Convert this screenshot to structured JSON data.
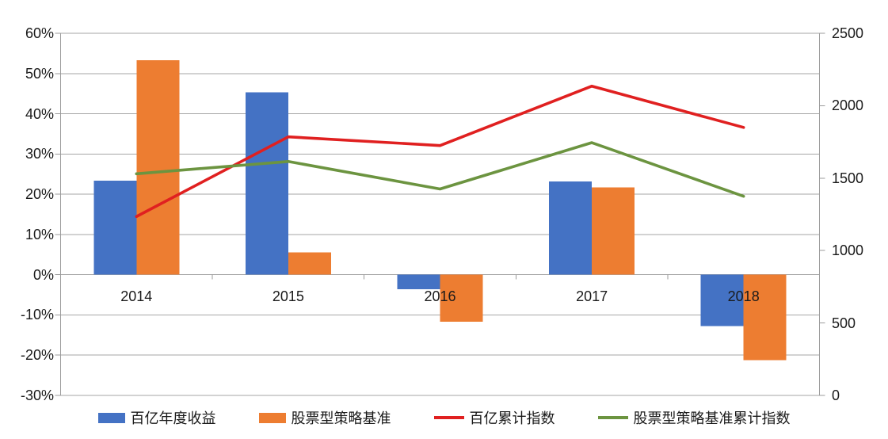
{
  "chart_data": {
    "type": "combo-bar-line",
    "title": "",
    "categories": [
      "2014",
      "2015",
      "2016",
      "2017",
      "2018"
    ],
    "bar_series": [
      {
        "key": "annual-return",
        "name": "百亿年度收益",
        "color": "#4472C4",
        "axis": "left",
        "values": [
          23.4,
          45.3,
          -3.6,
          23.2,
          -12.8
        ]
      },
      {
        "key": "benchmark-return",
        "name": "股票型策略基准",
        "color": "#ED7D31",
        "axis": "left",
        "values": [
          53.3,
          5.5,
          -11.7,
          21.7,
          -21.2
        ]
      }
    ],
    "line_series": [
      {
        "key": "cumulative-index",
        "name": "百亿累计指数",
        "color": "#E02020",
        "axis": "right",
        "values": [
          1235,
          1785,
          1725,
          2135,
          1850
        ]
      },
      {
        "key": "benchmark-cumulative-index",
        "name": "股票型策略基准累计指数",
        "color": "#6C9440",
        "axis": "right",
        "values": [
          1530,
          1615,
          1425,
          1745,
          1375
        ]
      }
    ],
    "left_axis": {
      "min": -30,
      "max": 60,
      "step": 10,
      "unit": "%",
      "tick_labels": [
        "60%",
        "50%",
        "40%",
        "30%",
        "20%",
        "10%",
        "0%",
        "-10%",
        "-20%",
        "-30%"
      ]
    },
    "right_axis": {
      "min": 0,
      "max": 2500,
      "step": 500,
      "tick_labels": [
        "2500",
        "2000",
        "1500",
        "1000",
        "500",
        "0"
      ]
    },
    "grid": true,
    "legend_position": "bottom",
    "colors": {
      "gridline": "#A6A6A6",
      "axis_line": "#9B9B9B",
      "text": "#1a1a1a",
      "background": "#FFFFFF"
    }
  }
}
